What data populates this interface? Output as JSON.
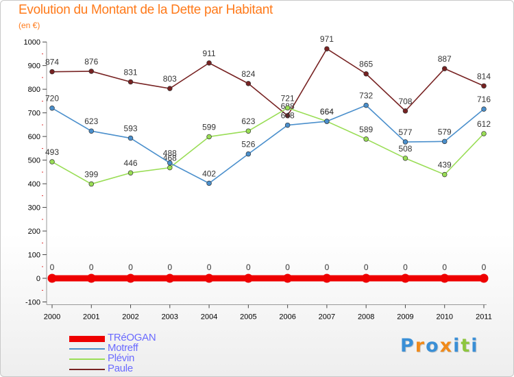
{
  "header": {
    "title": "Evolution du Montant de la Dette par Habitant",
    "unit": "(en €)"
  },
  "brand": {
    "text": "Proxiti",
    "letter_colors": [
      "#3a8fd6",
      "#f08a1a",
      "#3a8fd6",
      "#f08a1a",
      "#3a8fd6",
      "#8ec63f",
      "#3a8fd6"
    ]
  },
  "chart_data": {
    "type": "line",
    "title": "Evolution du Montant de la Dette par Habitant",
    "subtitle": "(en €)",
    "xlabel": "",
    "ylabel": "",
    "x": [
      "2000",
      "2001",
      "2002",
      "2003",
      "2004",
      "2005",
      "2006",
      "2007",
      "2008",
      "2009",
      "2010",
      "2011"
    ],
    "yticks": [
      -100,
      0,
      100,
      200,
      300,
      400,
      500,
      600,
      700,
      800,
      900,
      1000
    ],
    "ylim": [
      -100,
      1000
    ],
    "grid": false,
    "legend_position": "bottom-left",
    "series": [
      {
        "name": "TRéOGAN",
        "color": "#ee0000",
        "values": [
          0,
          0,
          0,
          0,
          0,
          0,
          0,
          0,
          0,
          0,
          0,
          0
        ]
      },
      {
        "name": "Motreff",
        "color": "#4a8fcc",
        "values": [
          720,
          623,
          593,
          488,
          402,
          526,
          648,
          664,
          732,
          577,
          579,
          716
        ]
      },
      {
        "name": "Plévin",
        "color": "#99dd55",
        "values": [
          493,
          399,
          446,
          468,
          599,
          623,
          721,
          664,
          589,
          508,
          439,
          612
        ]
      },
      {
        "name": "Paule",
        "color": "#772222",
        "values": [
          874,
          876,
          831,
          803,
          911,
          824,
          688,
          971,
          865,
          708,
          887,
          814
        ]
      }
    ]
  }
}
